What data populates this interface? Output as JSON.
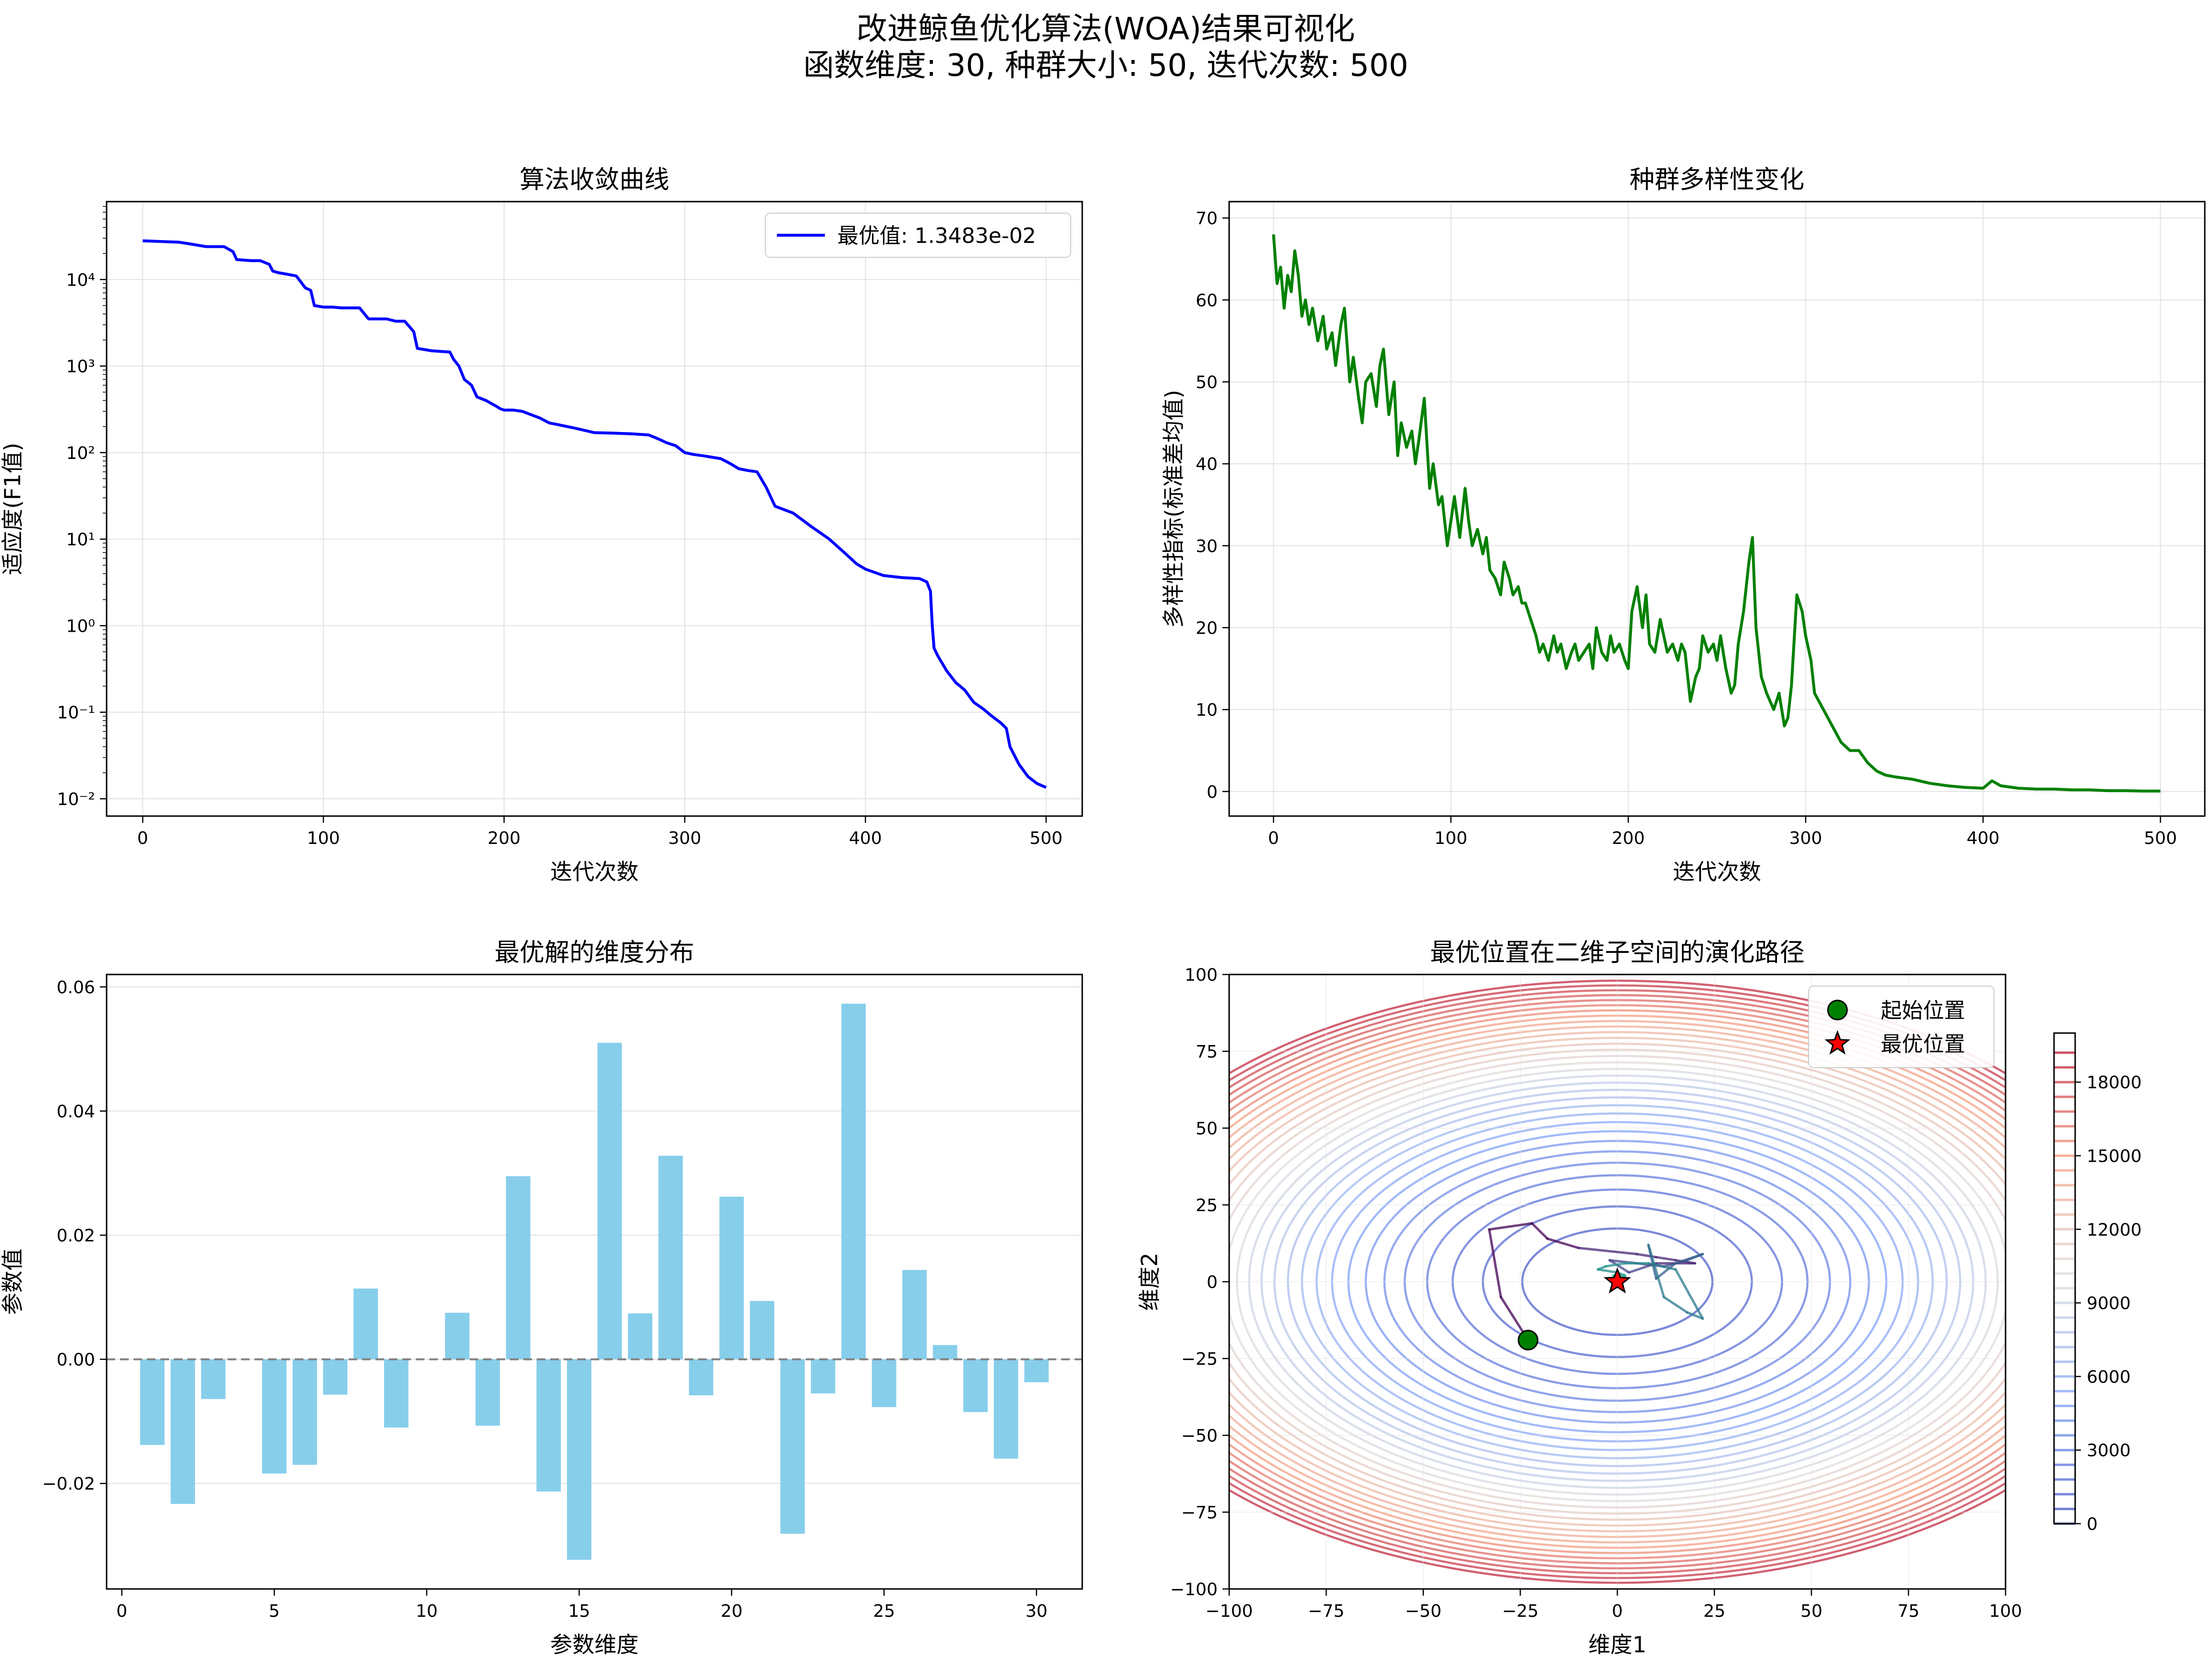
{
  "figure": {
    "title_line1": "改进鲸鱼优化算法(WOA)结果可视化",
    "title_line2": "函数维度: 30, 种群大小: 50, 迭代次数: 500"
  },
  "chart_data": [
    {
      "id": "convergence",
      "type": "line",
      "title": "算法收敛曲线",
      "xlabel": "迭代次数",
      "ylabel": "适应度(F1值)",
      "y_scale": "log",
      "xlim": [
        -20,
        520
      ],
      "ylim_log10": [
        -2.2,
        4.9
      ],
      "xticks": [
        0,
        100,
        200,
        300,
        400,
        500
      ],
      "ytick_labels": [
        "10⁻²",
        "10⁻¹",
        "10⁰",
        "10¹",
        "10²",
        "10³",
        "10⁴"
      ],
      "ytick_values": [
        0.01,
        0.1,
        1,
        10,
        100,
        1000,
        10000
      ],
      "grid": true,
      "legend_position": "upper-right",
      "color": "#0000ff",
      "series": [
        {
          "name": "最优值: 1.3483e-02",
          "x": [
            0,
            20,
            25,
            35,
            45,
            50,
            52,
            60,
            65,
            70,
            72,
            75,
            80,
            85,
            90,
            93,
            95,
            100,
            105,
            110,
            120,
            125,
            135,
            140,
            145,
            150,
            152,
            160,
            170,
            172,
            175,
            178,
            180,
            182,
            185,
            190,
            195,
            198,
            200,
            205,
            210,
            220,
            225,
            230,
            240,
            250,
            260,
            270,
            280,
            285,
            290,
            295,
            300,
            305,
            310,
            320,
            325,
            330,
            335,
            340,
            345,
            350,
            360,
            370,
            380,
            390,
            395,
            400,
            410,
            420,
            430,
            434,
            436,
            437,
            438,
            440,
            445,
            450,
            455,
            460,
            465,
            470,
            475,
            478,
            480,
            485,
            490,
            495,
            500
          ],
          "y": [
            28000,
            27000,
            26000,
            24000,
            24000,
            21000,
            17000,
            16500,
            16500,
            15000,
            12500,
            12000,
            11500,
            11000,
            8000,
            7500,
            5000,
            4800,
            4800,
            4700,
            4700,
            3500,
            3500,
            3300,
            3300,
            2500,
            1600,
            1500,
            1450,
            1200,
            1000,
            700,
            650,
            600,
            440,
            400,
            350,
            320,
            310,
            310,
            300,
            250,
            220,
            210,
            190,
            170,
            168,
            165,
            160,
            145,
            130,
            120,
            100,
            95,
            92,
            85,
            75,
            65,
            62,
            60,
            40,
            24,
            20,
            14,
            10,
            6.5,
            5.2,
            4.5,
            3.8,
            3.6,
            3.5,
            3.2,
            2.5,
            1,
            0.55,
            0.45,
            0.3,
            0.22,
            0.18,
            0.13,
            0.11,
            0.09,
            0.075,
            0.065,
            0.04,
            0.025,
            0.018,
            0.015,
            0.0135
          ]
        }
      ]
    },
    {
      "id": "diversity",
      "type": "line",
      "title": "种群多样性变化",
      "xlabel": "迭代次数",
      "ylabel": "多样性指标(标准差均值)",
      "xlim": [
        -25,
        525
      ],
      "ylim": [
        -3,
        72
      ],
      "xticks": [
        0,
        100,
        200,
        300,
        400,
        500
      ],
      "yticks": [
        0,
        10,
        20,
        30,
        40,
        50,
        60,
        70
      ],
      "grid": true,
      "color": "#008000",
      "series": [
        {
          "x": [
            0,
            2,
            4,
            6,
            8,
            10,
            12,
            14,
            16,
            18,
            20,
            22,
            25,
            28,
            30,
            33,
            35,
            38,
            40,
            43,
            45,
            48,
            50,
            52,
            55,
            58,
            60,
            62,
            65,
            68,
            70,
            72,
            75,
            78,
            80,
            82,
            85,
            88,
            90,
            93,
            95,
            98,
            100,
            102,
            105,
            108,
            110,
            112,
            115,
            118,
            120,
            122,
            125,
            128,
            130,
            133,
            135,
            138,
            140,
            142,
            145,
            148,
            150,
            152,
            155,
            158,
            160,
            162,
            165,
            168,
            170,
            172,
            175,
            178,
            180,
            182,
            185,
            188,
            190,
            192,
            195,
            198,
            200,
            202,
            205,
            208,
            210,
            212,
            215,
            218,
            220,
            222,
            225,
            228,
            230,
            232,
            235,
            238,
            240,
            242,
            245,
            248,
            250,
            252,
            255,
            258,
            260,
            262,
            265,
            268,
            270,
            272,
            275,
            278,
            280,
            282,
            285,
            288,
            290,
            292,
            295,
            298,
            300,
            303,
            305,
            310,
            315,
            320,
            325,
            330,
            335,
            340,
            345,
            350,
            360,
            370,
            380,
            390,
            400,
            405,
            410,
            420,
            430,
            440,
            450,
            460,
            470,
            480,
            490,
            500
          ],
          "y": [
            68,
            62,
            64,
            59,
            63,
            61,
            66,
            63,
            58,
            60,
            57,
            59,
            55,
            58,
            54,
            56,
            52,
            57,
            59,
            50,
            53,
            48,
            45,
            50,
            51,
            47,
            52,
            54,
            46,
            50,
            41,
            45,
            42,
            44,
            40,
            43,
            48,
            37,
            40,
            35,
            36,
            30,
            33,
            36,
            31,
            37,
            33,
            30,
            32,
            29,
            31,
            27,
            26,
            24,
            28,
            26,
            24,
            25,
            23,
            23,
            21,
            19,
            17,
            18,
            16,
            19,
            17,
            18,
            15,
            17,
            18,
            16,
            17,
            18,
            15,
            20,
            17,
            16,
            19,
            17,
            18,
            16,
            15,
            22,
            25,
            20,
            24,
            18,
            17,
            21,
            19,
            17,
            18,
            16,
            18,
            17,
            11,
            14,
            15,
            19,
            17,
            18,
            16,
            19,
            15,
            12,
            13,
            18,
            22,
            28,
            31,
            20,
            14,
            12,
            11,
            10,
            12,
            8,
            9,
            13,
            24,
            22,
            19,
            16,
            12,
            10,
            8,
            6,
            5,
            5,
            3.5,
            2.5,
            2,
            1.8,
            1.5,
            1,
            0.7,
            0.5,
            0.4,
            1.3,
            0.7,
            0.4,
            0.3,
            0.3,
            0.2,
            0.2,
            0.1,
            0.1,
            0.05,
            0.05
          ]
        }
      ]
    },
    {
      "id": "dimension_distribution",
      "type": "bar",
      "title": "最优解的维度分布",
      "xlabel": "参数维度",
      "ylabel": "参数值",
      "xlim": [
        -0.5,
        31.5
      ],
      "ylim": [
        -0.037,
        0.062
      ],
      "xticks": [
        0,
        5,
        10,
        15,
        20,
        25,
        30
      ],
      "yticks": [
        -0.02,
        0.0,
        0.02,
        0.04,
        0.06
      ],
      "ytick_labels": [
        "−0.02",
        "0.00",
        "0.02",
        "0.04",
        "0.06"
      ],
      "grid": true,
      "color": "#87ceeb",
      "zero_line": true,
      "categories": [
        1,
        2,
        3,
        4,
        5,
        6,
        7,
        8,
        9,
        10,
        11,
        12,
        13,
        14,
        15,
        16,
        17,
        18,
        19,
        20,
        21,
        22,
        23,
        24,
        25,
        26,
        27,
        28,
        29,
        30
      ],
      "values": [
        -0.0138,
        -0.0233,
        -0.0064,
        0.0,
        -0.0184,
        -0.017,
        -0.0057,
        0.0114,
        -0.011,
        0.0,
        0.0075,
        -0.0107,
        0.0295,
        -0.0213,
        -0.0323,
        0.051,
        0.0074,
        0.0328,
        -0.0058,
        0.0262,
        0.0094,
        -0.0281,
        -0.0055,
        0.0573,
        -0.0077,
        0.0144,
        0.0023,
        -0.0085,
        -0.016,
        -0.0037
      ]
    },
    {
      "id": "evolution_path",
      "type": "line",
      "title": "最优位置在二维子空间的演化路径",
      "xlabel": "维度1",
      "ylabel": "维度2",
      "xlim": [
        -100,
        100
      ],
      "ylim": [
        -100,
        100
      ],
      "xticks": [
        -100,
        -75,
        -50,
        -25,
        0,
        25,
        50,
        75,
        100
      ],
      "xtick_labels": [
        "−100",
        "−75",
        "−50",
        "−25",
        "0",
        "25",
        "50",
        "75",
        "100"
      ],
      "yticks": [
        -100,
        -75,
        -50,
        -25,
        0,
        25,
        50,
        75,
        100
      ],
      "ytick_labels": [
        "−100",
        "−75",
        "−50",
        "−25",
        "0",
        "25",
        "50",
        "75",
        "100"
      ],
      "contour_levels": [
        0,
        600,
        1200,
        1800,
        2400,
        3000,
        3600,
        4200,
        4800,
        5400,
        6000,
        6600,
        7200,
        7800,
        8400,
        9000,
        9600,
        10200,
        10800,
        11400,
        12000,
        12600,
        13200,
        13800,
        14400,
        15000,
        15600,
        16200,
        16800,
        17400,
        18000,
        18600,
        19200
      ],
      "colorbar_ticks": [
        0,
        3000,
        6000,
        9000,
        12000,
        15000,
        18000
      ],
      "colorbar_max": 20000,
      "legend_position": "upper-right",
      "legend": [
        {
          "label": "起始位置",
          "marker": "circle",
          "color": "#008000"
        },
        {
          "label": "最优位置",
          "marker": "star",
          "color": "#ff0000"
        }
      ],
      "start": [
        -23,
        -19
      ],
      "best": [
        0,
        0
      ],
      "path": [
        [
          -23,
          -19
        ],
        [
          -30,
          -5
        ],
        [
          -33,
          17
        ],
        [
          -22,
          19
        ],
        [
          -18,
          14
        ],
        [
          -10,
          11
        ],
        [
          5,
          9
        ],
        [
          10,
          8
        ],
        [
          15,
          7
        ],
        [
          20,
          6
        ],
        [
          10,
          6
        ],
        [
          3,
          3
        ],
        [
          -2,
          7
        ],
        [
          5,
          6
        ],
        [
          12,
          5
        ],
        [
          18,
          7
        ],
        [
          22,
          9
        ],
        [
          15,
          6
        ],
        [
          10,
          1
        ],
        [
          8,
          12
        ],
        [
          12,
          -5
        ],
        [
          18,
          -10
        ],
        [
          22,
          -12
        ],
        [
          15,
          4
        ],
        [
          8,
          6
        ],
        [
          2,
          6
        ],
        [
          -3,
          5
        ],
        [
          -5,
          4
        ],
        [
          0,
          3
        ],
        [
          2,
          2
        ],
        [
          -1,
          2
        ],
        [
          0.5,
          1
        ],
        [
          0,
          0.5
        ],
        [
          0,
          0
        ]
      ]
    }
  ]
}
